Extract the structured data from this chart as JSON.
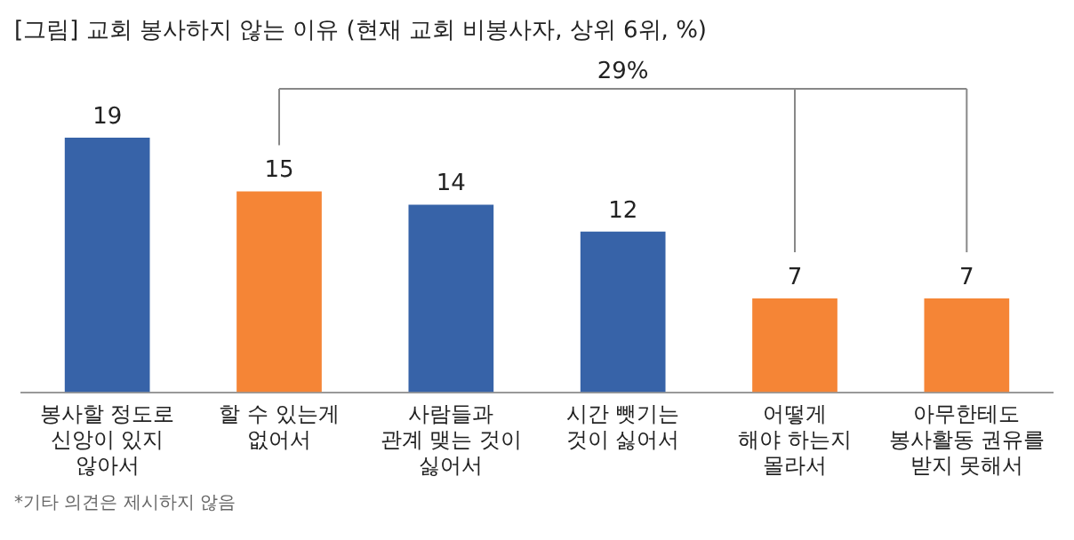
{
  "chart_data": {
    "type": "bar",
    "title": "[그림] 교회 봉사하지 않는 이유 (현재 교회 비봉사자, 상위 6위, %)",
    "categories": [
      "봉사할 정도로\n신앙이 있지\n않아서",
      "할 수 있는게\n없어서",
      "사람들과\n관계 맺는 것이\n싫어서",
      "시간 뺏기는\n것이 싫어서",
      "어떻게\n해야 하는지\n몰라서",
      "아무한테도\n봉사활동 권유를\n받지 못해서"
    ],
    "values": [
      19,
      15,
      14,
      12,
      7,
      7
    ],
    "colors": [
      "#3763a8",
      "#f58536",
      "#3763a8",
      "#3763a8",
      "#f58536",
      "#f58536"
    ],
    "data_labels": true,
    "annotations": [
      "29%",
      "*기타 의견은 제시하지 않음"
    ]
  }
}
